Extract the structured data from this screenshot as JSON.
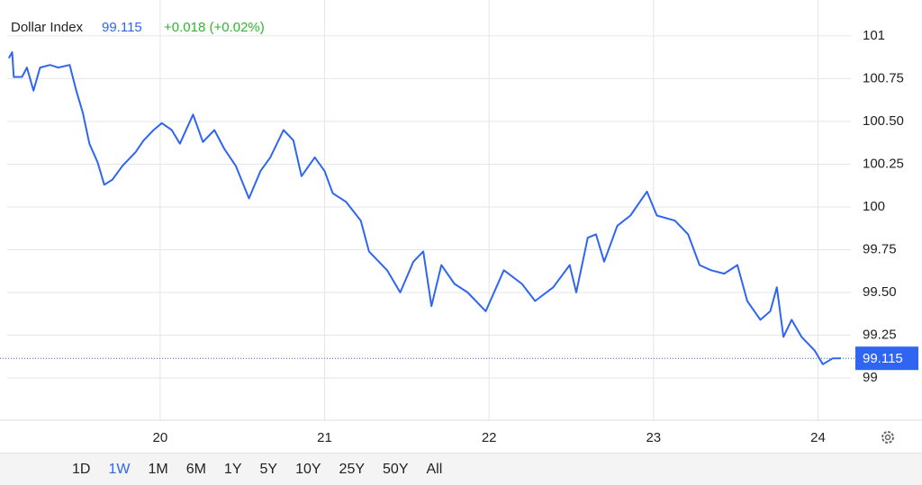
{
  "chart_data": {
    "type": "line",
    "title": "Dollar Index",
    "price": 99.115,
    "change": "+0.018 (+0.02%)",
    "x": [
      19.08,
      19.1,
      19.11,
      19.16,
      19.19,
      19.23,
      19.27,
      19.33,
      19.38,
      19.45,
      19.49,
      19.53,
      19.57,
      19.62,
      19.66,
      19.71,
      19.77,
      19.85,
      19.9,
      19.96,
      20.01,
      20.07,
      20.12,
      20.2,
      20.26,
      20.33,
      20.39,
      20.46,
      20.54,
      20.61,
      20.67,
      20.75,
      20.81,
      20.86,
      20.94,
      21.0,
      21.05,
      21.13,
      21.22,
      21.27,
      21.38,
      21.46,
      21.54,
      21.6,
      21.65,
      21.71,
      21.79,
      21.87,
      21.98,
      22.09,
      22.2,
      22.28,
      22.39,
      22.49,
      22.53,
      22.6,
      22.65,
      22.7,
      22.78,
      22.86,
      22.96,
      23.02,
      23.13,
      23.21,
      23.28,
      23.35,
      23.43,
      23.51,
      23.57,
      23.65,
      23.71,
      23.75,
      23.79,
      23.84,
      23.9,
      23.98,
      24.03,
      24.09,
      24.14
    ],
    "series": [
      {
        "name": "Dollar Index",
        "color": "#2f65f2",
        "values": [
          100.87,
          100.905,
          100.76,
          100.76,
          100.815,
          100.68,
          100.815,
          100.83,
          100.815,
          100.83,
          100.68,
          100.55,
          100.37,
          100.26,
          100.13,
          100.16,
          100.24,
          100.32,
          100.39,
          100.45,
          100.49,
          100.45,
          100.37,
          100.54,
          100.38,
          100.45,
          100.34,
          100.24,
          100.05,
          100.21,
          100.29,
          100.45,
          100.39,
          100.18,
          100.29,
          100.21,
          100.08,
          100.03,
          99.92,
          99.74,
          99.63,
          99.5,
          99.68,
          99.74,
          99.42,
          99.66,
          99.55,
          99.5,
          99.39,
          99.63,
          99.55,
          99.45,
          99.53,
          99.66,
          99.5,
          99.82,
          99.84,
          99.68,
          99.89,
          99.95,
          100.09,
          99.95,
          99.92,
          99.84,
          99.66,
          99.63,
          99.61,
          99.66,
          99.45,
          99.34,
          99.39,
          99.53,
          99.24,
          99.34,
          99.24,
          99.16,
          99.08,
          99.115,
          99.115
        ]
      }
    ],
    "xlim": [
      19.07,
      24.2
    ],
    "xticks": [
      20,
      21,
      22,
      23,
      24
    ],
    "ylim": [
      98.753,
      101.21
    ],
    "yticks": [
      99,
      99.25,
      {
        "value": 99.5,
        "label": "99.50"
      },
      99.75,
      100,
      100.25,
      {
        "value": 100.5,
        "label": "100.50"
      },
      100.75,
      101
    ],
    "grid": true,
    "ranges": [
      "1D",
      "1W",
      "1M",
      "6M",
      "1Y",
      "5Y",
      "10Y",
      "25Y",
      "50Y",
      "All"
    ],
    "selected_range": "1W"
  }
}
